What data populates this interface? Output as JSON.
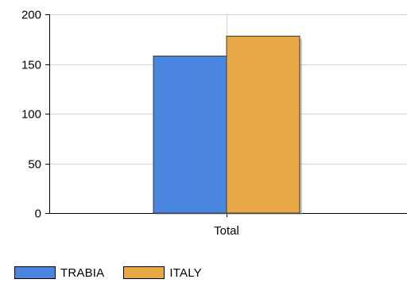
{
  "chart_data": {
    "type": "bar",
    "categories": [
      "Total"
    ],
    "series": [
      {
        "name": "TRABIA",
        "values": [
          158
        ],
        "color": "#4a86e0"
      },
      {
        "name": "ITALY",
        "values": [
          178
        ],
        "color": "#e8a845"
      }
    ],
    "title": "",
    "xlabel": "",
    "ylabel": "",
    "ylim": [
      0,
      200
    ],
    "yticks": [
      0,
      50,
      100,
      150,
      200
    ],
    "grid": true,
    "legend_position": "bottom-left"
  }
}
